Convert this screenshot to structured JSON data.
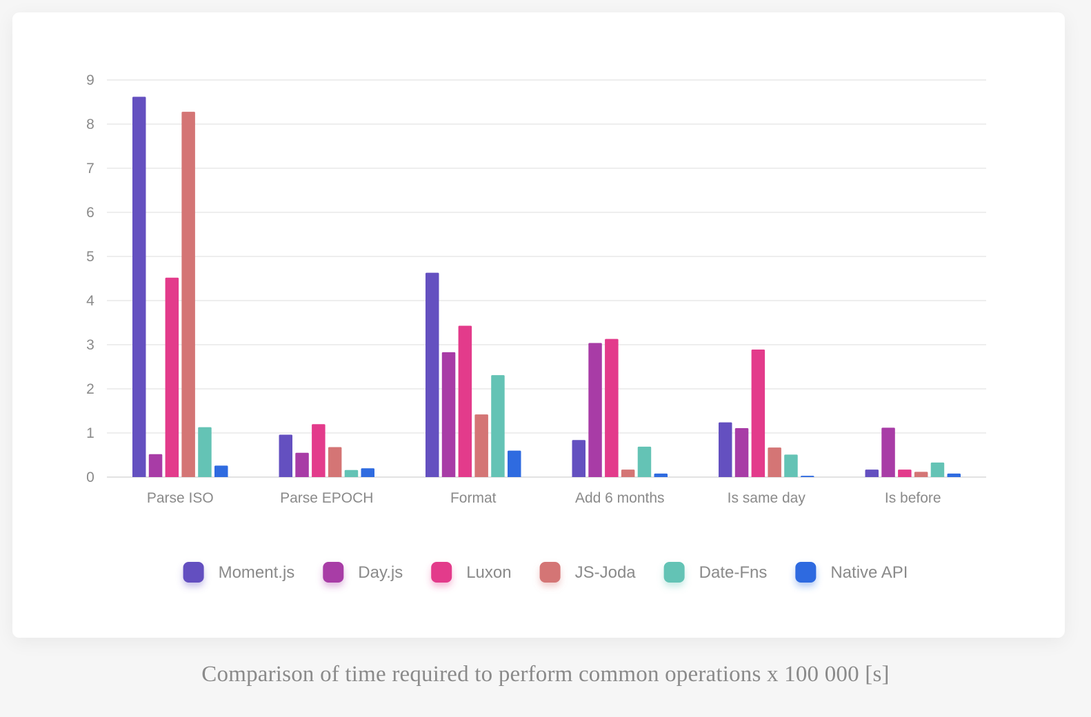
{
  "caption": "Comparison of time required to perform common operations x 100 000 [s]",
  "chart_data": {
    "type": "bar",
    "title": "",
    "xlabel": "",
    "ylabel": "",
    "ylim": [
      0,
      9
    ],
    "yticks": [
      0,
      1,
      2,
      3,
      4,
      5,
      6,
      7,
      8,
      9
    ],
    "grid": true,
    "legend_position": "bottom",
    "categories": [
      "Parse ISO",
      "Parse EPOCH",
      "Format",
      "Add 6 months",
      "Is same day",
      "Is before"
    ],
    "series": [
      {
        "name": "Moment.js",
        "color": "#6450c0",
        "values": [
          8.62,
          0.96,
          4.63,
          0.84,
          1.24,
          0.17
        ]
      },
      {
        "name": "Day.js",
        "color": "#a83ca6",
        "values": [
          0.52,
          0.55,
          2.83,
          3.04,
          1.11,
          1.12
        ]
      },
      {
        "name": "Luxon",
        "color": "#e33b8b",
        "values": [
          4.52,
          1.2,
          3.43,
          3.13,
          2.89,
          0.17
        ]
      },
      {
        "name": "JS-Joda",
        "color": "#d47575",
        "values": [
          8.28,
          0.68,
          1.42,
          0.17,
          0.67,
          0.12
        ]
      },
      {
        "name": "Date-Fns",
        "color": "#64c3b5",
        "values": [
          1.13,
          0.16,
          2.31,
          0.69,
          0.51,
          0.33
        ]
      },
      {
        "name": "Native API",
        "color": "#2f6be0",
        "values": [
          0.26,
          0.2,
          0.6,
          0.08,
          0.03,
          0.08
        ]
      }
    ]
  }
}
